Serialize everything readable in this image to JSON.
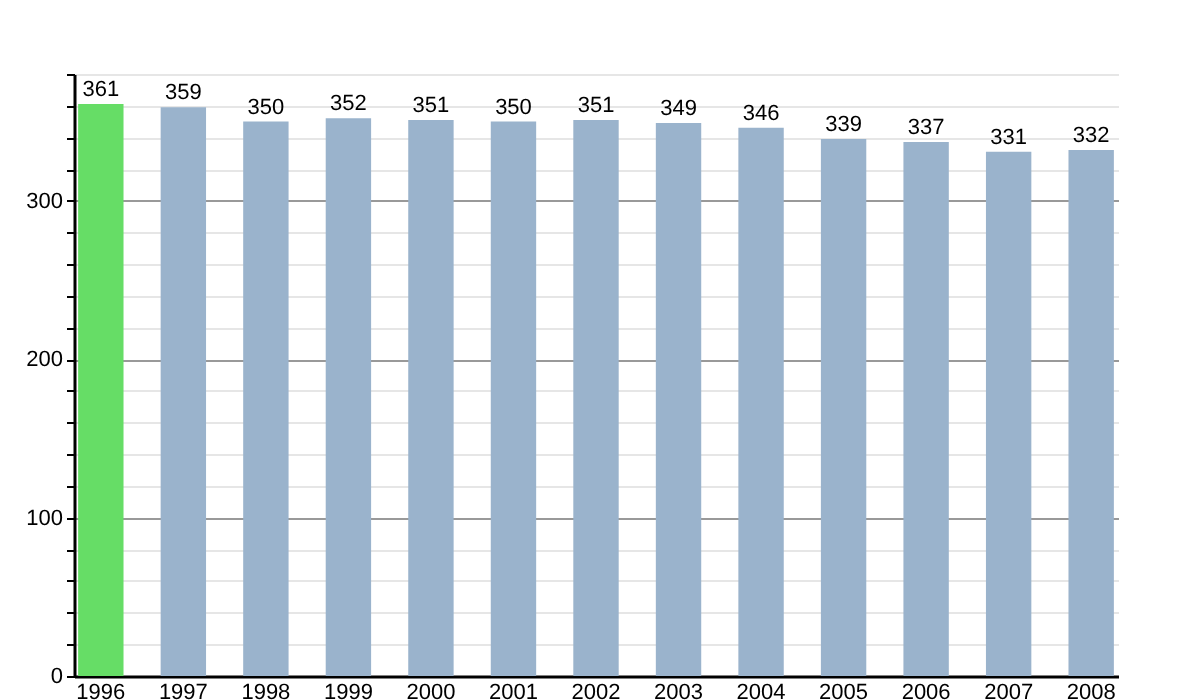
{
  "chart_data": {
    "type": "bar",
    "categories": [
      "1996",
      "1997",
      "1998",
      "1999",
      "2000",
      "2001",
      "2002",
      "2003",
      "2004",
      "2005",
      "2006",
      "2007",
      "2008"
    ],
    "values": [
      361,
      359,
      350,
      352,
      351,
      350,
      351,
      349,
      346,
      339,
      337,
      331,
      332
    ],
    "colors": [
      "#66dd66",
      "#9ab3cc",
      "#9ab3cc",
      "#9ab3cc",
      "#9ab3cc",
      "#9ab3cc",
      "#9ab3cc",
      "#9ab3cc",
      "#9ab3cc",
      "#9ab3cc",
      "#9ab3cc",
      "#9ab3cc",
      "#9ab3cc"
    ],
    "ylim": [
      0,
      380
    ],
    "yticks": [
      0,
      {
        "value": 20,
        "label": null
      },
      {
        "value": 40,
        "label": null
      },
      {
        "value": 60,
        "label": null
      },
      {
        "value": 80,
        "label": null
      },
      100,
      {
        "value": 120,
        "label": null
      },
      {
        "value": 140,
        "label": null
      },
      {
        "value": 160,
        "label": null
      },
      {
        "value": 180,
        "label": null
      },
      200,
      {
        "value": 220,
        "label": null
      },
      {
        "value": 240,
        "label": null
      },
      {
        "value": 260,
        "label": null
      },
      {
        "value": 280,
        "label": null
      },
      300,
      {
        "value": 320,
        "label": null
      },
      {
        "value": 340,
        "label": null
      },
      {
        "value": 360,
        "label": null
      },
      {
        "value": 380,
        "label": null
      }
    ],
    "grid": true,
    "data_labels": true
  }
}
